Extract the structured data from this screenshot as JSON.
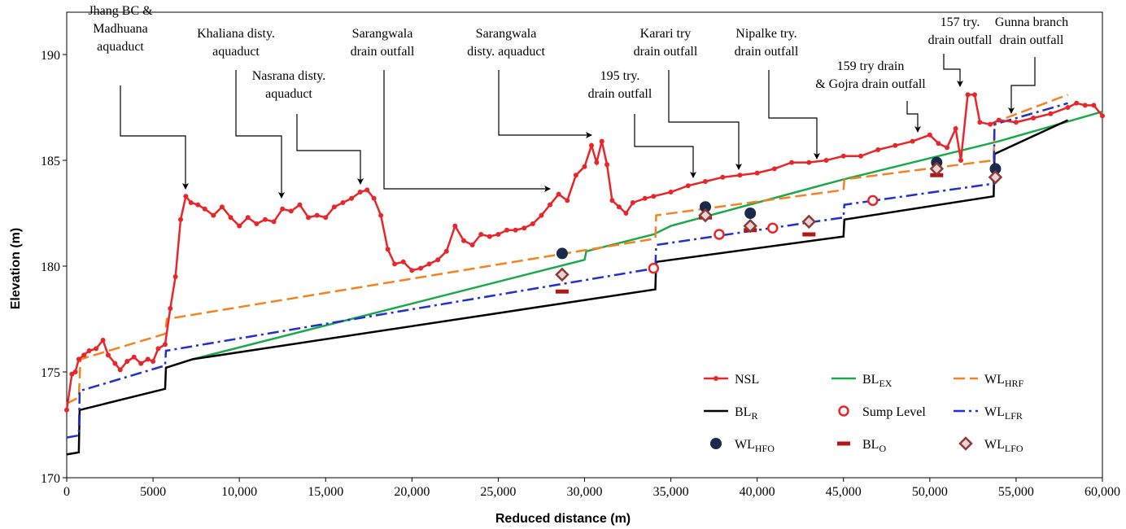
{
  "chart_data": {
    "type": "line",
    "xlabel": "Reduced distance (m)",
    "ylabel": "Elevation (m)",
    "xlim": [
      0,
      60000
    ],
    "ylim": [
      170,
      192
    ],
    "xticks": [
      0,
      5000,
      {
        "value": 10000,
        "label": "10,000"
      },
      {
        "value": 15000,
        "label": "15,000"
      },
      {
        "value": 20000,
        "label": "20,000"
      },
      {
        "value": 25000,
        "label": "25,000"
      },
      {
        "value": 30000,
        "label": "30,000"
      },
      {
        "value": 35000,
        "label": "35,000"
      },
      {
        "value": 40000,
        "label": "40,000"
      },
      {
        "value": 45000,
        "label": "45,000"
      },
      {
        "value": 50000,
        "label": "50,000"
      },
      {
        "value": 55000,
        "label": "55,000"
      },
      {
        "value": 60000,
        "label": "60,000"
      }
    ],
    "yticks": [
      170,
      175,
      180,
      185,
      190
    ],
    "legend": "lower right",
    "annotations": [
      {
        "lines": [
          "Jhang BC &",
          "Madhuana",
          "aquaduct"
        ]
      },
      {
        "lines": [
          "Khaliana disty.",
          "aquaduct"
        ]
      },
      {
        "lines": [
          "Nasrana disty.",
          "aquaduct"
        ]
      },
      {
        "lines": [
          "Sarangwala",
          "drain outfall"
        ]
      },
      {
        "lines": [
          "Sarangwala",
          "disty. aquaduct"
        ]
      },
      {
        "lines": [
          "195 try.",
          "drain outfall"
        ]
      },
      {
        "lines": [
          "Karari try",
          "drain outfall"
        ]
      },
      {
        "lines": [
          "Nipalke try.",
          "drain outfall"
        ]
      },
      {
        "lines": [
          "159 try drain",
          "& Gojra drain outfall"
        ]
      },
      {
        "lines": [
          "157 try.",
          "drain outfall"
        ]
      },
      {
        "lines": [
          "Gunna branch",
          "drain outfall"
        ]
      }
    ],
    "series": [
      {
        "name": "NSL",
        "color": "#e8262a",
        "mode": "line+markers",
        "dash": "solid",
        "marker": "circle",
        "x": [
          0,
          300,
          500,
          700,
          1000,
          1300,
          1700,
          2100,
          2400,
          2800,
          3100,
          3500,
          3900,
          4300,
          4700,
          5000,
          5300,
          5700,
          6000,
          6300,
          6600,
          6900,
          7200,
          7600,
          8000,
          8500,
          9000,
          9500,
          10000,
          10500,
          11000,
          11500,
          12000,
          12500,
          13000,
          13500,
          14000,
          14500,
          15000,
          15500,
          16000,
          16500,
          17000,
          17400,
          17800,
          18200,
          18600,
          19000,
          19500,
          20000,
          20500,
          21000,
          21500,
          22000,
          22500,
          23000,
          23500,
          24000,
          24500,
          25000,
          25500,
          26000,
          26500,
          27000,
          27500,
          28000,
          28500,
          29000,
          29500,
          30000,
          30400,
          30700,
          31000,
          31300,
          31600,
          32000,
          32400,
          32800,
          33500,
          34000,
          35000,
          36000,
          37000,
          38000,
          39000,
          40000,
          41000,
          42000,
          43000,
          44000,
          45000,
          46000,
          47000,
          48000,
          49000,
          50000,
          50500,
          51000,
          51500,
          51800,
          52200,
          52600,
          52900,
          53500,
          54000,
          55000,
          56000,
          57000,
          58000,
          58500,
          59000,
          59500,
          60000
        ],
        "values": [
          173.2,
          174.9,
          175.0,
          175.6,
          175.8,
          176.0,
          176.1,
          176.5,
          175.8,
          175.4,
          175.1,
          175.5,
          175.7,
          175.4,
          175.6,
          175.5,
          176.1,
          176.3,
          178.0,
          179.5,
          182.2,
          183.3,
          183.0,
          182.9,
          182.7,
          182.4,
          182.8,
          182.3,
          181.9,
          182.3,
          182.0,
          182.2,
          182.1,
          182.7,
          182.6,
          182.9,
          182.3,
          182.4,
          182.3,
          182.8,
          183.0,
          183.2,
          183.5,
          183.6,
          183.2,
          182.4,
          180.8,
          180.1,
          180.2,
          179.8,
          179.9,
          180.1,
          180.3,
          180.7,
          181.9,
          181.2,
          181.0,
          181.5,
          181.4,
          181.5,
          181.7,
          181.7,
          181.8,
          182.0,
          182.4,
          182.9,
          183.4,
          183.1,
          184.3,
          184.7,
          185.7,
          184.9,
          185.9,
          184.8,
          183.1,
          182.8,
          182.5,
          183.0,
          183.2,
          183.3,
          183.5,
          183.8,
          184.0,
          184.2,
          184.3,
          184.4,
          184.6,
          184.9,
          184.9,
          185.0,
          185.2,
          185.2,
          185.5,
          185.7,
          185.9,
          186.2,
          185.8,
          185.6,
          186.5,
          185.0,
          188.1,
          188.1,
          186.8,
          186.7,
          186.9,
          186.8,
          187.0,
          187.2,
          187.5,
          187.7,
          187.6,
          187.6,
          187.1
        ]
      },
      {
        "name": "BL",
        "name_sub": "EX",
        "color": "#1aa84b",
        "mode": "line",
        "dash": "solid",
        "x": [
          7300,
          30000,
          30100,
          34000,
          35000,
          45000,
          54000,
          60000
        ],
        "values": [
          175.6,
          180.3,
          180.7,
          181.5,
          181.9,
          184.1,
          185.9,
          187.3
        ]
      },
      {
        "name": "WL",
        "name_sub": "HRF",
        "color": "#f58220",
        "mode": "line",
        "dash": "dashed",
        "x": [
          0,
          700,
          800,
          5700,
          5800,
          34100,
          34150,
          45000,
          45050,
          53700,
          53750,
          58000
        ],
        "values": [
          173.5,
          173.8,
          175.6,
          176.8,
          177.5,
          181.3,
          182.4,
          183.6,
          184.1,
          185.0,
          186.8,
          188.1
        ]
      },
      {
        "name": "BL",
        "name_sub": "R",
        "color": "#000000",
        "mode": "line",
        "dash": "solid",
        "x": [
          0,
          700,
          750,
          5700,
          5750,
          7300,
          34100,
          34150,
          45000,
          45050,
          53700,
          53750,
          58000
        ],
        "values": [
          171.1,
          171.2,
          173.2,
          174.2,
          175.2,
          175.6,
          178.9,
          180.2,
          181.4,
          182.2,
          183.3,
          185.3,
          186.9
        ]
      },
      {
        "name": "Sump Level",
        "color": "#e8262a",
        "mode": "markers",
        "marker": "open-circle",
        "x": [
          34000,
          37800,
          40900,
          46700
        ],
        "values": [
          179.9,
          181.5,
          181.8,
          183.1
        ]
      },
      {
        "name": "WL",
        "name_sub": "LFR",
        "color": "#1f2fd0",
        "mode": "line",
        "dash": "dashdot",
        "x": [
          0,
          700,
          750,
          5700,
          5750,
          34100,
          34150,
          45000,
          45050,
          53700,
          53750,
          58000
        ],
        "values": [
          171.9,
          172.0,
          174.1,
          175.3,
          176.0,
          179.9,
          181.0,
          182.3,
          182.9,
          183.9,
          186.7,
          187.7
        ]
      },
      {
        "name": "WL",
        "name_sub": "HFO",
        "color": "#1a2a4a",
        "mode": "markers",
        "marker": "circle-big",
        "x": [
          28700,
          37000,
          39600,
          50400,
          53800
        ],
        "values": [
          180.6,
          182.8,
          182.5,
          184.9,
          184.6
        ]
      },
      {
        "name": "BL",
        "name_sub": "O",
        "color": "#b01818",
        "mode": "markers",
        "marker": "dash",
        "x": [
          28700,
          37000,
          39600,
          43000,
          50400
        ],
        "values": [
          178.8,
          182.3,
          181.7,
          181.5,
          184.3
        ]
      },
      {
        "name": "WL",
        "name_sub": "LFO",
        "color": "#8b3a3a",
        "mode": "markers",
        "marker": "diamond",
        "x": [
          28700,
          37000,
          39600,
          43000,
          50400,
          53800
        ],
        "values": [
          179.6,
          182.4,
          181.9,
          182.1,
          184.6,
          184.2
        ]
      }
    ]
  }
}
